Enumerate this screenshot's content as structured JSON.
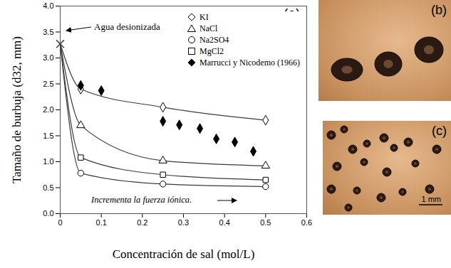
{
  "chart_data": {
    "type": "scatter",
    "x_label": "Concentración de sal (mol/L)",
    "y_label": "Tamaño de burbuja (d32, mm)",
    "xlim": [
      0,
      0.6
    ],
    "xticks": [
      0,
      0.1,
      0.2,
      0.3,
      0.4,
      0.5,
      0.6
    ],
    "ylim": [
      0,
      4
    ],
    "yticks": [
      {
        "value": 0,
        "label": "0.0"
      },
      0.5,
      {
        "value": 1,
        "label": "1.0"
      },
      1.5,
      {
        "value": 2,
        "label": "2.0"
      },
      2.5,
      {
        "value": 3,
        "label": "3.0"
      },
      3.5,
      {
        "value": 4,
        "label": "4.0"
      }
    ],
    "legend": "top",
    "annotations": [
      {
        "text": "(a)"
      },
      {
        "text": "Agua desionizada",
        "x": 0,
        "y": 3.27,
        "marker": "x"
      },
      {
        "text": "Incrementa la fuerza iónica."
      }
    ],
    "series": [
      {
        "name": "KI",
        "type": "line",
        "marker": "diamond",
        "color": "#000000",
        "x": [
          0.05,
          0.25,
          0.5
        ],
        "values": [
          2.4,
          2.05,
          1.8
        ]
      },
      {
        "name": "NaCl",
        "type": "line",
        "marker": "triangle",
        "color": "#000000",
        "x": [
          0.05,
          0.25,
          0.5
        ],
        "values": [
          1.7,
          1.02,
          0.92
        ]
      },
      {
        "name": "Na2SO4",
        "type": "line",
        "marker": "circle",
        "color": "#000000",
        "x": [
          0.05,
          0.25,
          0.5
        ],
        "values": [
          0.78,
          0.57,
          0.52
        ]
      },
      {
        "name": "MgCl2",
        "type": "line",
        "marker": "square",
        "color": "#000000",
        "x": [
          0.05,
          0.25,
          0.5
        ],
        "values": [
          1.08,
          0.75,
          0.65
        ]
      },
      {
        "name": "Marrucci y Nicodemo (1966)",
        "type": "scatter",
        "marker": "filled-diamond",
        "color": "#000000",
        "x": [
          0.05,
          0.1,
          0.25,
          0.29,
          0.34,
          0.38,
          0.425,
          0.47
        ],
        "values": [
          2.47,
          2.37,
          1.78,
          1.71,
          1.64,
          1.44,
          1.38,
          1.2
        ]
      }
    ]
  },
  "panels": [
    {
      "label": "(b)"
    },
    {
      "label": "(c)",
      "scale_bar": "1 mm"
    }
  ]
}
